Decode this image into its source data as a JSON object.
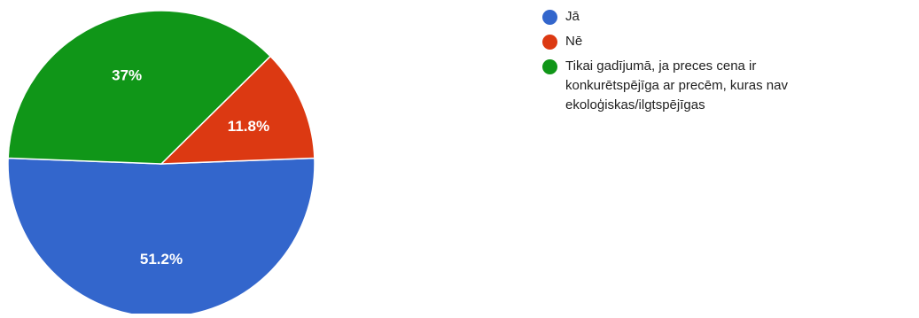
{
  "chart_data": {
    "type": "pie",
    "title": "",
    "start_angle_deg": -90,
    "direction": "counterclockwise",
    "start_slice": "Jā",
    "slices": [
      {
        "label": "Jā",
        "value": 51.2,
        "display": "51.2%",
        "color": "#3366cc"
      },
      {
        "label": "Nē",
        "value": 11.8,
        "display": "11.8%",
        "color": "#dc3912"
      },
      {
        "label": "Tikai gadījumā, ja preces cena ir konkurētspējīga ar precēm, kuras nav ekoloģiskas/ilgtspējīgas",
        "value": 37,
        "display": "37%",
        "color": "#109618"
      }
    ],
    "legend_position": "right",
    "slice_border_color": "#ffffff"
  }
}
